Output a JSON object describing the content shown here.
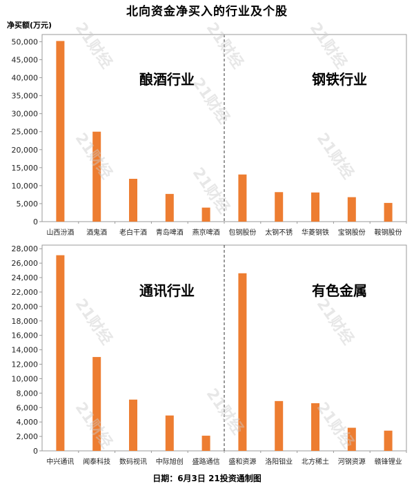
{
  "title": "北向资金净买入的行业及个股",
  "ylabel": "净买额(万元)",
  "footer": "日期：6月3日 21投资通制图",
  "watermark": "21财经",
  "colors": {
    "bar": "#ED7D31",
    "axis": "#999999",
    "divider": "#333333"
  },
  "chart_data": [
    {
      "type": "bar",
      "title": "",
      "ylabel": "净买额(万元)",
      "ylim": [
        0,
        52000
      ],
      "yticks": [
        0,
        5000,
        10000,
        15000,
        20000,
        25000,
        30000,
        35000,
        40000,
        45000,
        50000
      ],
      "ytick_labels": [
        "0",
        "5,000",
        "10,000",
        "15,000",
        "20,000",
        "25,000",
        "30,000",
        "35,000",
        "40,000",
        "45,000",
        "50,000"
      ],
      "panels": [
        "酿酒行业",
        "钢铁行业"
      ],
      "categories": [
        "山西汾酒",
        "酒鬼酒",
        "老白干酒",
        "青岛啤酒",
        "燕京啤酒",
        "包钢股份",
        "太钢不锈",
        "华菱钢铁",
        "宝钢股份",
        "鞍钢股份"
      ],
      "values": [
        50200,
        25000,
        11900,
        7700,
        3900,
        13100,
        8200,
        8100,
        6800,
        5200
      ]
    },
    {
      "type": "bar",
      "title": "",
      "ylabel": "净买额(万元)",
      "ylim": [
        0,
        28500
      ],
      "yticks": [
        0,
        2000,
        4000,
        6000,
        8000,
        10000,
        12000,
        14000,
        16000,
        18000,
        20000,
        22000,
        24000,
        26000,
        28000
      ],
      "ytick_labels": [
        "0",
        "2,000",
        "4,000",
        "6,000",
        "8,000",
        "10,000",
        "12,000",
        "14,000",
        "16,000",
        "18,000",
        "20,000",
        "22,000",
        "24,000",
        "26,000",
        "28,000"
      ],
      "panels": [
        "通讯行业",
        "有色金属"
      ],
      "categories": [
        "中兴通讯",
        "闻泰科技",
        "数码视讯",
        "中际旭创",
        "盛路通信",
        "盛和资源",
        "洛阳钼业",
        "北方稀土",
        "河钢资源",
        "赣锋锂业"
      ],
      "values": [
        27100,
        13000,
        7100,
        4900,
        2100,
        24600,
        6900,
        6600,
        3200,
        2800
      ]
    }
  ]
}
